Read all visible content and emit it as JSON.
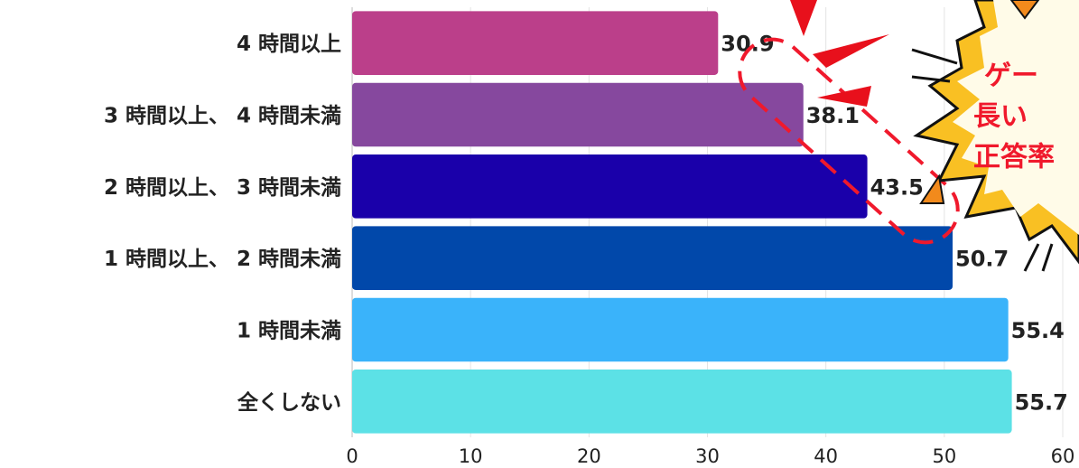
{
  "chart_data": {
    "type": "bar",
    "orientation": "horizontal",
    "categories": [
      "4 時間以上",
      "3 時間以上、 4 時間未満",
      "2 時間以上、 3 時間未満",
      "1 時間以上、 2 時間未満",
      "1 時間未満",
      "全くしない"
    ],
    "values": [
      30.9,
      38.1,
      43.5,
      50.7,
      55.4,
      55.7
    ],
    "colors": [
      "#bb3f8a",
      "#86489e",
      "#1a00aa",
      "#0148aa",
      "#3ab3fa",
      "#5ce1e6"
    ],
    "xlim": [
      0,
      60
    ],
    "xticks": [
      0,
      10,
      20,
      30,
      40,
      50,
      60
    ],
    "grid": true,
    "annotation": [
      "ゲー",
      "長い",
      "正答率"
    ]
  }
}
